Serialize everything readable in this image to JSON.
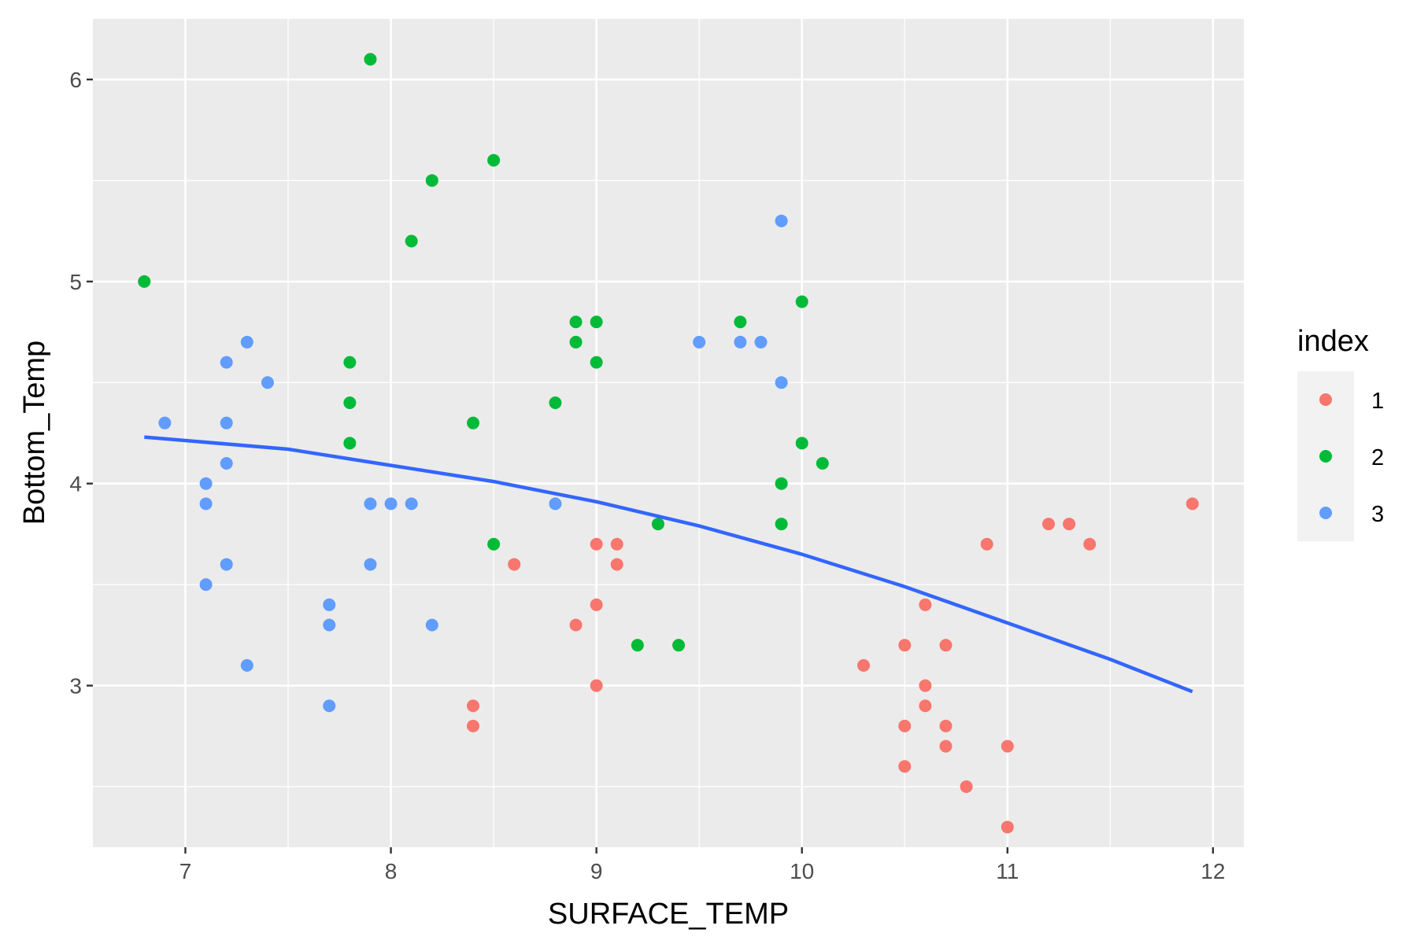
{
  "chart_data": {
    "type": "scatter",
    "title": "",
    "xlabel": "SURFACE_TEMP",
    "ylabel": "Bottom_Temp",
    "xlim": [
      6.55,
      12.15
    ],
    "ylim": [
      2.2,
      6.3
    ],
    "x_ticks": [
      7,
      8,
      9,
      10,
      11,
      12
    ],
    "x_tick_labels": [
      "7",
      "8",
      "9",
      "10",
      "11",
      "12"
    ],
    "y_ticks": [
      3,
      4,
      5,
      6
    ],
    "y_tick_labels": [
      "3",
      "4",
      "5",
      "6"
    ],
    "grid": true,
    "legend": {
      "title": "index",
      "placement": "right"
    },
    "series": [
      {
        "name": "1",
        "color": "#F8766D",
        "points": [
          [
            8.4,
            2.9
          ],
          [
            8.4,
            2.8
          ],
          [
            8.6,
            3.6
          ],
          [
            8.9,
            3.3
          ],
          [
            9.0,
            3.7
          ],
          [
            9.0,
            3.4
          ],
          [
            9.0,
            3.0
          ],
          [
            9.1,
            3.7
          ],
          [
            9.1,
            3.6
          ],
          [
            10.3,
            3.1
          ],
          [
            10.5,
            3.2
          ],
          [
            10.5,
            2.8
          ],
          [
            10.5,
            2.6
          ],
          [
            10.6,
            3.4
          ],
          [
            10.6,
            3.0
          ],
          [
            10.6,
            2.9
          ],
          [
            10.7,
            3.2
          ],
          [
            10.7,
            2.8
          ],
          [
            10.7,
            2.7
          ],
          [
            10.8,
            2.5
          ],
          [
            10.9,
            3.7
          ],
          [
            11.0,
            2.7
          ],
          [
            11.0,
            2.3
          ],
          [
            11.2,
            3.8
          ],
          [
            11.3,
            3.8
          ],
          [
            11.4,
            3.7
          ],
          [
            11.9,
            3.9
          ]
        ]
      },
      {
        "name": "2",
        "color": "#00BA38",
        "points": [
          [
            6.8,
            5.0
          ],
          [
            7.8,
            4.6
          ],
          [
            7.8,
            4.4
          ],
          [
            7.8,
            4.2
          ],
          [
            7.9,
            6.1
          ],
          [
            8.1,
            5.2
          ],
          [
            8.2,
            5.5
          ],
          [
            8.4,
            4.3
          ],
          [
            8.5,
            5.6
          ],
          [
            8.5,
            3.7
          ],
          [
            8.8,
            4.4
          ],
          [
            8.9,
            4.8
          ],
          [
            8.9,
            4.7
          ],
          [
            9.0,
            4.8
          ],
          [
            9.0,
            4.6
          ],
          [
            9.2,
            3.2
          ],
          [
            9.3,
            3.8
          ],
          [
            9.4,
            3.2
          ],
          [
            9.7,
            4.8
          ],
          [
            9.9,
            4.0
          ],
          [
            9.9,
            3.8
          ],
          [
            10.0,
            4.9
          ],
          [
            10.0,
            4.2
          ],
          [
            10.1,
            4.1
          ]
        ]
      },
      {
        "name": "3",
        "color": "#619CFF",
        "points": [
          [
            6.9,
            4.3
          ],
          [
            7.1,
            4.0
          ],
          [
            7.1,
            3.9
          ],
          [
            7.1,
            3.5
          ],
          [
            7.2,
            4.6
          ],
          [
            7.2,
            4.3
          ],
          [
            7.2,
            4.1
          ],
          [
            7.2,
            3.6
          ],
          [
            7.3,
            4.7
          ],
          [
            7.3,
            3.1
          ],
          [
            7.4,
            4.5
          ],
          [
            7.7,
            3.4
          ],
          [
            7.7,
            3.3
          ],
          [
            7.7,
            2.9
          ],
          [
            7.9,
            3.9
          ],
          [
            7.9,
            3.6
          ],
          [
            8.0,
            3.9
          ],
          [
            8.1,
            3.9
          ],
          [
            8.2,
            3.3
          ],
          [
            8.8,
            3.9
          ],
          [
            9.5,
            4.7
          ],
          [
            9.7,
            4.7
          ],
          [
            9.8,
            4.7
          ],
          [
            9.9,
            5.3
          ],
          [
            9.9,
            4.5
          ]
        ]
      }
    ],
    "smooth_line": {
      "color": "#3366FF",
      "points": [
        [
          6.8,
          4.23
        ],
        [
          7.5,
          4.17
        ],
        [
          8.0,
          4.09
        ],
        [
          8.5,
          4.01
        ],
        [
          9.0,
          3.91
        ],
        [
          9.5,
          3.79
        ],
        [
          10.0,
          3.65
        ],
        [
          10.5,
          3.49
        ],
        [
          11.0,
          3.31
        ],
        [
          11.5,
          3.13
        ],
        [
          11.9,
          2.97
        ]
      ]
    }
  }
}
